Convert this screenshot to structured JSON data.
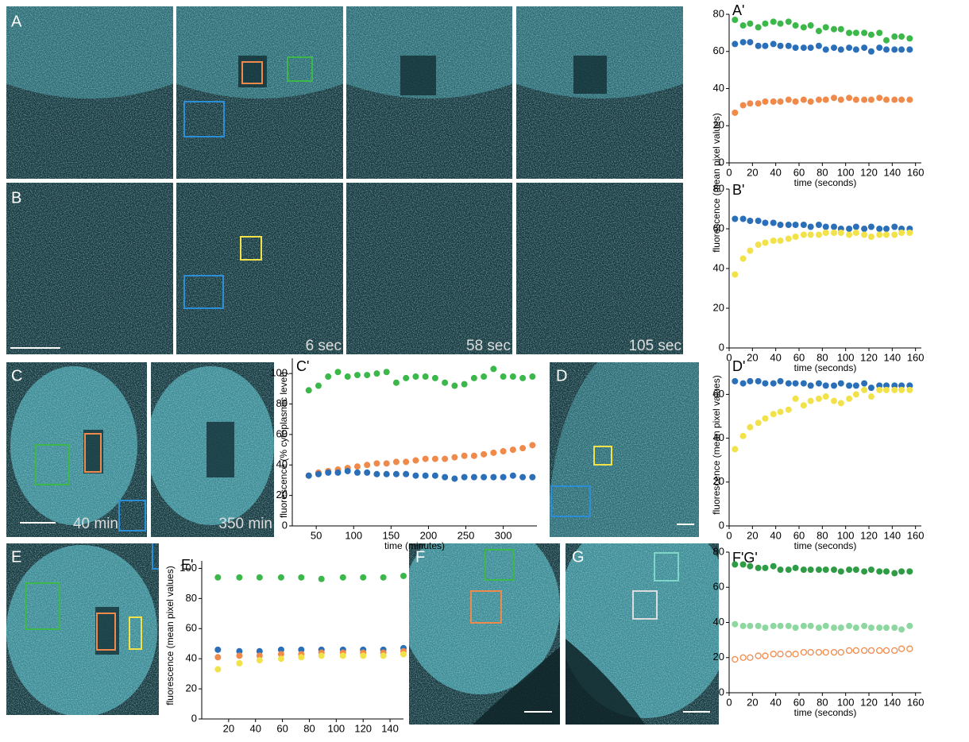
{
  "panels": [
    {
      "label": "A"
    },
    {
      "label": "B"
    },
    {
      "label": "C"
    },
    {
      "label": "D"
    },
    {
      "label": "E"
    },
    {
      "label": "F"
    },
    {
      "label": "G"
    }
  ],
  "timestamps": [
    "6 sec",
    "58 sec",
    "105 sec",
    "40 min",
    "350 min"
  ],
  "chart_data": [
    {
      "type": "scatter",
      "label": "A'",
      "ylabel": "fluorescence (mean pixel values)",
      "xlabel": "time (seconds)",
      "x": [
        5,
        12,
        18,
        25,
        31,
        38,
        44,
        51,
        57,
        64,
        70,
        77,
        83,
        90,
        96,
        103,
        109,
        116,
        122,
        129,
        135,
        142,
        148,
        155
      ],
      "xlim": [
        0,
        165
      ],
      "ylim": [
        0,
        80
      ],
      "xticks": [
        0,
        20,
        40,
        60,
        80,
        100,
        120,
        140,
        160
      ],
      "yticks": [
        0,
        20,
        40,
        60,
        80
      ],
      "series": [
        {
          "color": "#3cb84a",
          "values": [
            77,
            74,
            75,
            73,
            75,
            76,
            75,
            76,
            74,
            73,
            74,
            71,
            73,
            72,
            72,
            70,
            70,
            70,
            69,
            70,
            66,
            68,
            68,
            67
          ]
        },
        {
          "color": "#2a6fb8",
          "values": [
            64,
            65,
            65,
            63,
            63,
            64,
            63,
            63,
            62,
            62,
            62,
            63,
            61,
            62,
            61,
            62,
            61,
            62,
            60,
            62,
            61,
            61,
            61,
            61
          ]
        },
        {
          "color": "#f08a4b",
          "values": [
            27,
            31,
            32,
            32,
            33,
            33,
            33,
            34,
            33,
            34,
            33,
            34,
            34,
            35,
            34,
            35,
            34,
            34,
            34,
            35,
            34,
            34,
            34,
            34
          ]
        }
      ]
    },
    {
      "type": "scatter",
      "label": "B'",
      "xlabel": "time (seconds)",
      "x": [
        5,
        12,
        18,
        25,
        31,
        38,
        44,
        51,
        57,
        64,
        70,
        77,
        83,
        90,
        96,
        103,
        109,
        116,
        122,
        129,
        135,
        142,
        148,
        155
      ],
      "xlim": [
        0,
        165
      ],
      "ylim": [
        0,
        80
      ],
      "xticks": [
        0,
        20,
        40,
        60,
        80,
        100,
        120,
        140,
        160
      ],
      "yticks": [
        0,
        20,
        40,
        60,
        80
      ],
      "series": [
        {
          "color": "#2a6fb8",
          "values": [
            65,
            65,
            64,
            64,
            63,
            63,
            62,
            62,
            62,
            62,
            61,
            62,
            61,
            61,
            60,
            60,
            61,
            60,
            61,
            60,
            60,
            61,
            60,
            60
          ]
        },
        {
          "color": "#f2e24a",
          "values": [
            37,
            45,
            49,
            52,
            53,
            54,
            54,
            55,
            56,
            57,
            57,
            57,
            58,
            58,
            58,
            57,
            58,
            57,
            56,
            57,
            57,
            57,
            58,
            58
          ]
        }
      ]
    },
    {
      "type": "scatter",
      "label": "C'",
      "ylabel": "fluorescence (% cytoplasmic level)",
      "xlabel": "time (minutes)",
      "x": [
        40,
        53,
        66,
        79,
        92,
        105,
        118,
        131,
        144,
        157,
        170,
        183,
        196,
        209,
        222,
        235,
        248,
        261,
        274,
        287,
        300,
        313,
        326,
        339
      ],
      "xlim": [
        18,
        345
      ],
      "ylim": [
        0,
        110
      ],
      "xticks": [
        50,
        100,
        150,
        200,
        250,
        300
      ],
      "yticks": [
        0,
        20,
        40,
        60,
        80,
        100
      ],
      "series": [
        {
          "color": "#3cb84a",
          "values": [
            89,
            92,
            98,
            101,
            98,
            99,
            99,
            100,
            101,
            94,
            97,
            98,
            98,
            97,
            94,
            92,
            93,
            97,
            98,
            103,
            98,
            98,
            97,
            98
          ]
        },
        {
          "color": "#f08a4b",
          "values": [
            33,
            35,
            36,
            37,
            38,
            39,
            40,
            41,
            41,
            42,
            42,
            43,
            44,
            44,
            44,
            45,
            46,
            46,
            47,
            48,
            49,
            50,
            51,
            53
          ]
        },
        {
          "color": "#2a6fb8",
          "values": [
            33,
            34,
            35,
            35,
            36,
            35,
            35,
            34,
            34,
            34,
            34,
            33,
            33,
            33,
            32,
            31,
            32,
            32,
            32,
            32,
            32,
            33,
            32,
            32
          ]
        }
      ]
    },
    {
      "type": "scatter",
      "label": "D'",
      "ylabel": "fluorescence (mean pixel values)",
      "xlabel": "time (seconds)",
      "x": [
        5,
        12,
        18,
        25,
        31,
        38,
        44,
        51,
        57,
        64,
        70,
        77,
        83,
        90,
        96,
        103,
        109,
        116,
        122,
        129,
        135,
        142,
        148,
        155
      ],
      "xlim": [
        0,
        165
      ],
      "ylim": [
        0,
        75
      ],
      "xticks": [
        0,
        20,
        40,
        60,
        80,
        100,
        120,
        140,
        160
      ],
      "yticks": [
        0,
        20,
        40,
        60
      ],
      "series": [
        {
          "color": "#2a6fb8",
          "values": [
            66,
            65,
            66,
            66,
            65,
            65,
            66,
            65,
            65,
            65,
            64,
            65,
            64,
            64,
            65,
            64,
            64,
            65,
            63,
            64,
            64,
            64,
            64,
            64
          ]
        },
        {
          "color": "#f2e24a",
          "values": [
            35,
            41,
            45,
            47,
            49,
            51,
            52,
            53,
            58,
            55,
            57,
            58,
            59,
            57,
            56,
            58,
            60,
            62,
            59,
            62,
            62,
            62,
            62,
            62
          ]
        }
      ]
    },
    {
      "type": "scatter",
      "label": "E'",
      "ylabel": "fluorescence (mean pixel values)",
      "x": [
        12,
        28,
        43,
        59,
        74,
        89,
        105,
        120,
        135,
        150
      ],
      "xlim": [
        0,
        150
      ],
      "ylim": [
        0,
        105
      ],
      "xticks": [
        20,
        40,
        60,
        80,
        100,
        120,
        140
      ],
      "yticks": [
        0,
        20,
        40,
        60,
        80,
        100
      ],
      "series": [
        {
          "color": "#3cb84a",
          "values": [
            94,
            94,
            94,
            94,
            94,
            93,
            94,
            94,
            94,
            95
          ]
        },
        {
          "color": "#2a6fb8",
          "values": [
            46,
            45,
            45,
            46,
            46,
            46,
            46,
            46,
            46,
            47
          ]
        },
        {
          "color": "#f08a4b",
          "values": [
            41,
            42,
            42,
            43,
            43,
            44,
            44,
            44,
            44,
            45
          ]
        },
        {
          "color": "#f2e24a",
          "values": [
            33,
            37,
            39,
            40,
            41,
            42,
            42,
            42,
            42,
            43
          ]
        }
      ]
    },
    {
      "type": "scatter",
      "label": "F'G'",
      "xlabel": "time (seconds)",
      "x": [
        5,
        12,
        18,
        25,
        31,
        38,
        44,
        51,
        57,
        64,
        70,
        77,
        83,
        90,
        96,
        103,
        109,
        116,
        122,
        129,
        135,
        142,
        148,
        155
      ],
      "xlim": [
        0,
        165
      ],
      "ylim": [
        0,
        80
      ],
      "xticks": [
        0,
        20,
        40,
        60,
        80,
        100,
        120,
        140,
        160
      ],
      "yticks": [
        0,
        20,
        40,
        60,
        80
      ],
      "series": [
        {
          "color": "#2e9c45",
          "values": [
            73,
            73,
            72,
            71,
            71,
            72,
            70,
            70,
            71,
            70,
            70,
            70,
            70,
            70,
            69,
            70,
            70,
            69,
            70,
            69,
            69,
            68,
            69,
            69
          ]
        },
        {
          "color": "#8fd7a0",
          "values": [
            39,
            38,
            38,
            38,
            37,
            38,
            38,
            38,
            37,
            38,
            38,
            37,
            38,
            37,
            37,
            38,
            37,
            38,
            37,
            37,
            37,
            37,
            36,
            38
          ]
        },
        {
          "color": "#f08a4b",
          "marker": "open",
          "values": [
            19,
            20,
            20,
            21,
            21,
            22,
            22,
            22,
            22,
            23,
            23,
            23,
            23,
            23,
            23,
            24,
            24,
            24,
            24,
            24,
            24,
            24,
            25,
            25
          ]
        }
      ]
    }
  ]
}
